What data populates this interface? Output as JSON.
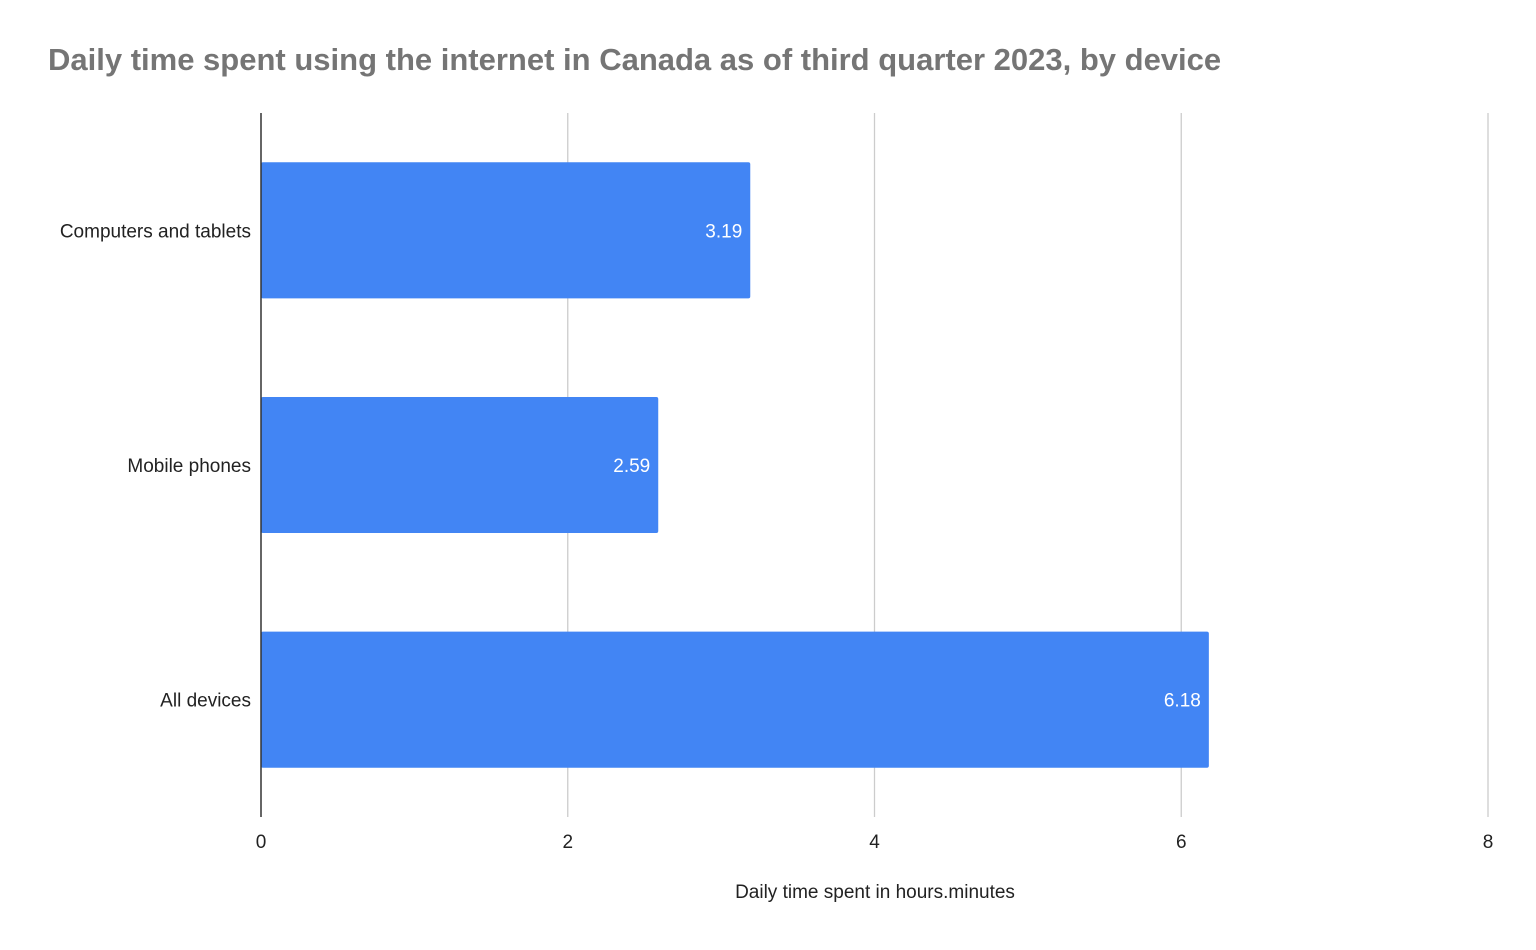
{
  "chart_data": {
    "type": "bar",
    "orientation": "horizontal",
    "title": "Daily time spent using the internet in Canada as of third quarter 2023, by device",
    "xlabel": "Daily time spent in hours.minutes",
    "ylabel": "",
    "categories": [
      "Computers and tablets",
      "Mobile phones",
      "All devices"
    ],
    "values": [
      3.19,
      2.59,
      6.18
    ],
    "value_labels": [
      "3.19",
      "2.59",
      "6.18"
    ],
    "xlim": [
      0,
      8
    ],
    "x_ticks": [
      0,
      2,
      4,
      6,
      8
    ],
    "grid": true,
    "bar_color": "#4285f4",
    "gridline_color": "#cccccc",
    "title_color": "#757575"
  }
}
